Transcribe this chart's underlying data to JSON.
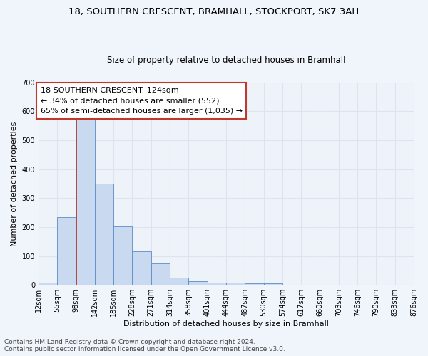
{
  "title": "18, SOUTHERN CRESCENT, BRAMHALL, STOCKPORT, SK7 3AH",
  "subtitle": "Size of property relative to detached houses in Bramhall",
  "xlabel": "Distribution of detached houses by size in Bramhall",
  "ylabel": "Number of detached properties",
  "bin_labels": [
    "12sqm",
    "55sqm",
    "98sqm",
    "142sqm",
    "185sqm",
    "228sqm",
    "271sqm",
    "314sqm",
    "358sqm",
    "401sqm",
    "444sqm",
    "487sqm",
    "530sqm",
    "574sqm",
    "617sqm",
    "660sqm",
    "703sqm",
    "746sqm",
    "790sqm",
    "833sqm",
    "876sqm"
  ],
  "bar_values": [
    8,
    235,
    580,
    350,
    203,
    115,
    75,
    25,
    13,
    9,
    8,
    5,
    5,
    0,
    0,
    0,
    0,
    0,
    0,
    0
  ],
  "bar_color": "#c9d9f0",
  "bar_edge_color": "#5b8cc8",
  "vline_color": "#c0392b",
  "annotation_text": "18 SOUTHERN CRESCENT: 124sqm\n← 34% of detached houses are smaller (552)\n65% of semi-detached houses are larger (1,035) →",
  "annotation_box_color": "#ffffff",
  "annotation_border_color": "#c0392b",
  "ylim": [
    0,
    700
  ],
  "yticks": [
    0,
    100,
    200,
    300,
    400,
    500,
    600,
    700
  ],
  "footer_line1": "Contains HM Land Registry data © Crown copyright and database right 2024.",
  "footer_line2": "Contains public sector information licensed under the Open Government Licence v3.0.",
  "bg_color": "#eef2f9",
  "grid_color": "#dde4f0",
  "title_fontsize": 9.5,
  "subtitle_fontsize": 8.5,
  "axis_label_fontsize": 8,
  "tick_fontsize": 7,
  "annotation_fontsize": 8,
  "footer_fontsize": 6.5
}
